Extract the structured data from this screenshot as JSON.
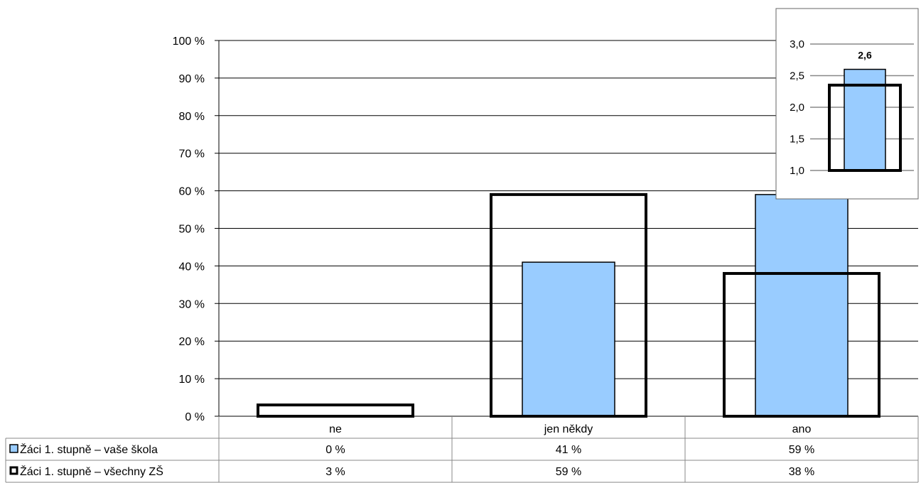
{
  "chart_data": [
    {
      "type": "bar",
      "categories": [
        "ne",
        "jen někdy",
        "ano"
      ],
      "ylim": [
        0,
        100
      ],
      "y_ticks": [
        "0 %",
        "10 %",
        "20 %",
        "30 %",
        "40 %",
        "50 %",
        "60 %",
        "70 %",
        "80 %",
        "90 %",
        "100 %"
      ],
      "grid": true,
      "legend": "in data table",
      "series": [
        {
          "name": "Žáci 1. stupně – vaše škola",
          "values": [
            0,
            41,
            59
          ],
          "labels": [
            "0 %",
            "41 %",
            "59 %"
          ],
          "color": "#99ccff"
        },
        {
          "name": "Žáci 1. stupně – všechny ZŠ",
          "values": [
            3,
            59,
            38
          ],
          "labels": [
            "3 %",
            "59 %",
            "38 %"
          ],
          "color": "#000000"
        }
      ]
    },
    {
      "type": "bar",
      "ylim": [
        1.0,
        3.0
      ],
      "y_ticks": [
        "1,0",
        "1,5",
        "2,0",
        "2,5",
        "3,0"
      ],
      "grid": true,
      "series": [
        {
          "values": [
            2.6
          ],
          "label": "2,6",
          "color": "#99ccff"
        },
        {
          "values": [
            2.35
          ],
          "color": "#000000"
        }
      ]
    }
  ]
}
